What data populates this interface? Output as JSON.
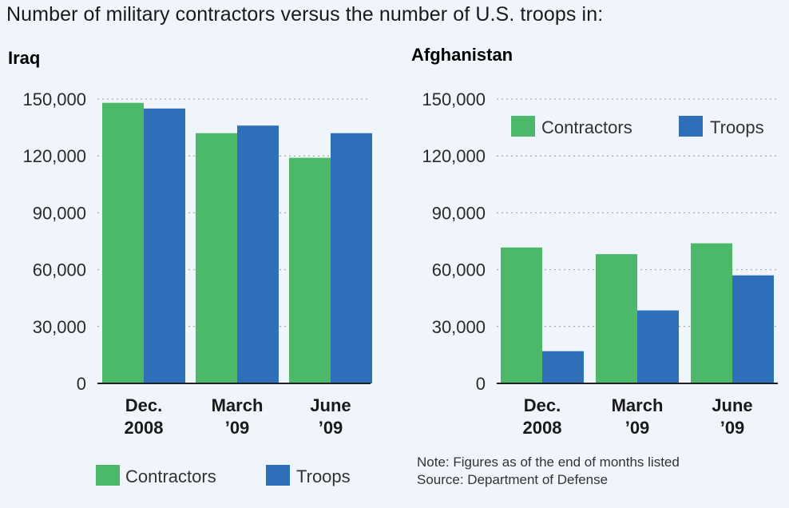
{
  "title": "Number of military contractors versus the number of U.S. troops in:",
  "colors": {
    "contractors": "#4cb86a",
    "troops": "#2e6fba"
  },
  "note": "Note: Figures as of the end of months listed",
  "source": "Source: Department of Defense",
  "chart_data": [
    {
      "type": "bar",
      "title": "Iraq",
      "categories": [
        [
          "Dec.",
          "2008"
        ],
        [
          "March",
          "’09"
        ],
        [
          "June",
          "’09"
        ]
      ],
      "series": [
        {
          "name": "Contractors",
          "values": [
            148000,
            132000,
            119000
          ]
        },
        {
          "name": "Troops",
          "values": [
            145000,
            136000,
            132000
          ]
        }
      ],
      "yticks": [
        "0",
        "30,000",
        "60,000",
        "90,000",
        "120,000",
        "150,000"
      ],
      "ylim": [
        0,
        150000
      ],
      "grid": true,
      "legend_position": "bottom"
    },
    {
      "type": "bar",
      "title": "Afghanistan",
      "categories": [
        [
          "Dec.",
          "2008"
        ],
        [
          "March",
          "’09"
        ],
        [
          "June",
          "’09"
        ]
      ],
      "series": [
        {
          "name": "Contractors",
          "values": [
            71700,
            68200,
            73900
          ]
        },
        {
          "name": "Troops",
          "values": [
            17000,
            38500,
            57000
          ]
        }
      ],
      "yticks": [
        "0",
        "30,000",
        "60,000",
        "90,000",
        "120,000",
        "150,000"
      ],
      "ylim": [
        0,
        150000
      ],
      "grid": true,
      "legend_position": "top"
    }
  ]
}
